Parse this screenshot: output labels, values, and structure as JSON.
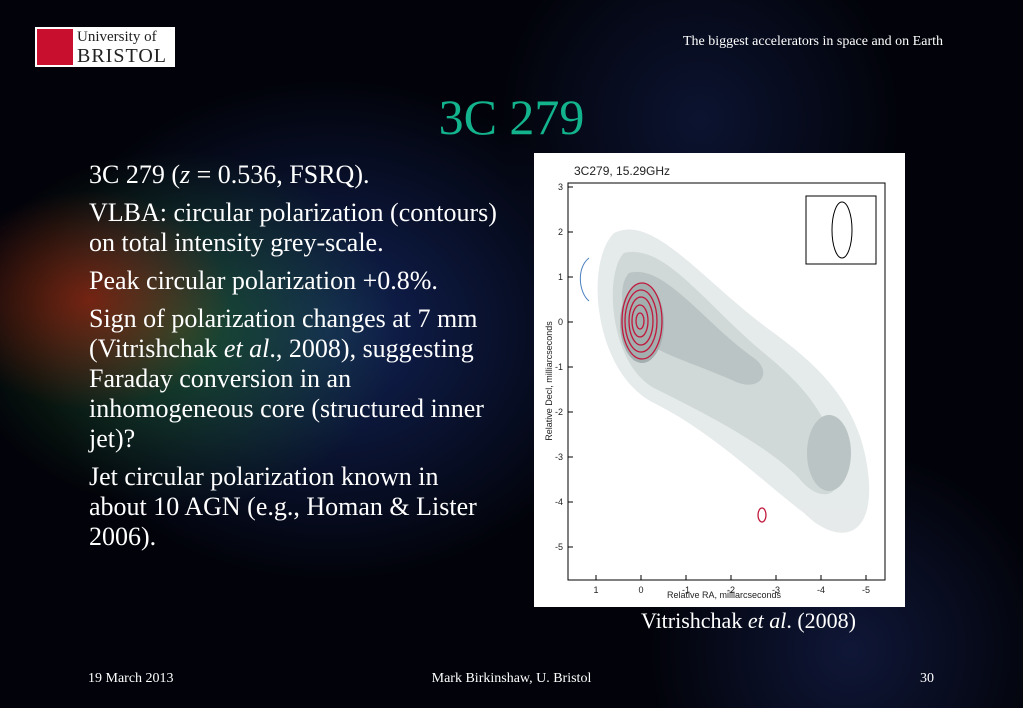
{
  "header": {
    "logo_line1": "University of",
    "logo_line2": "BRISTOL",
    "subtitle": "The biggest accelerators in space and on Earth"
  },
  "title": "3C 279",
  "bullets": [
    [
      {
        "text": "3C 279 ("
      },
      {
        "text": "z",
        "italic": true
      },
      {
        "text": " = 0.536, FSRQ)."
      }
    ],
    [
      {
        "text": "VLBA: circular polarization (contours) on total intensity grey-scale."
      }
    ],
    [
      {
        "text": "Peak circular polarization +0.8%."
      }
    ],
    [
      {
        "text": "Sign of polarization changes at 7 mm (Vitrishchak "
      },
      {
        "text": "et al",
        "italic": true
      },
      {
        "text": "., 2008), suggesting Faraday conversion in an inhomogeneous core (structured inner jet)?"
      }
    ],
    [
      {
        "text": "Jet circular polarization known in about 10 AGN (e.g., Homan & Lister 2006)."
      }
    ]
  ],
  "figure": {
    "title": "3C279, 15.29GHz",
    "x_label": "Relative RA, milliarcseconds",
    "y_label": "Relative Decl, milliarcseconds",
    "xticks": [
      "1",
      "0",
      "-1",
      "-2",
      "-3",
      "-4",
      "-5"
    ],
    "yticks": [
      "3",
      "2",
      "1",
      "0",
      "-1",
      "-2",
      "-3",
      "-4",
      "-5"
    ]
  },
  "caption": [
    {
      "text": "Vitrishchak "
    },
    {
      "text": "et al",
      "italic": true
    },
    {
      "text": ". (2008)"
    }
  ],
  "footer": {
    "date": "19 March 2013",
    "author": "Mark Birkinshaw, U. Bristol",
    "page": "30"
  }
}
